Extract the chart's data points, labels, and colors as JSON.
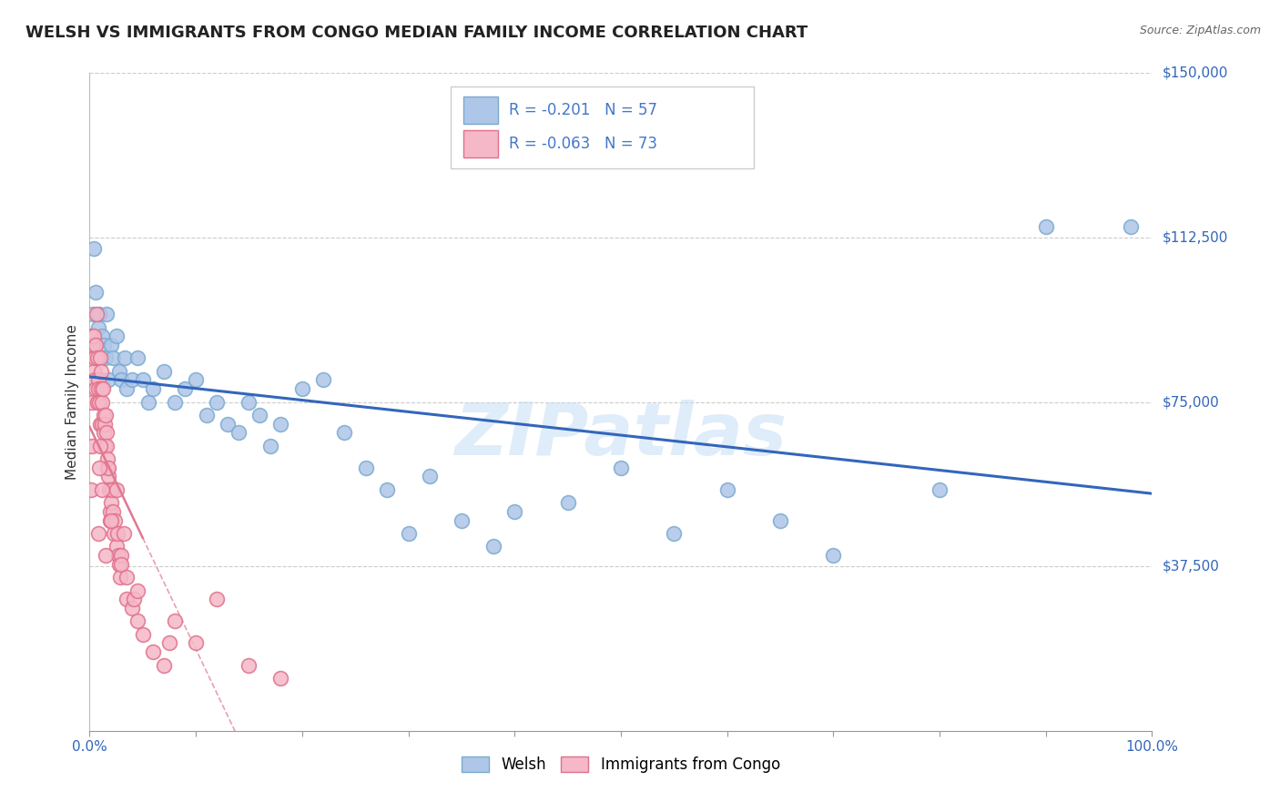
{
  "title": "WELSH VS IMMIGRANTS FROM CONGO MEDIAN FAMILY INCOME CORRELATION CHART",
  "source": "Source: ZipAtlas.com",
  "ylabel": "Median Family Income",
  "xlim": [
    0,
    100
  ],
  "ylim": [
    0,
    150000
  ],
  "yticks": [
    0,
    37500,
    75000,
    112500,
    150000
  ],
  "ytick_labels": [
    "",
    "$37,500",
    "$75,000",
    "$112,500",
    "$150,000"
  ],
  "welsh_R": -0.201,
  "welsh_N": 57,
  "congo_R": -0.063,
  "congo_N": 73,
  "welsh_color": "#aec6e8",
  "welsh_edge_color": "#7aaad0",
  "congo_color": "#f5b8c8",
  "congo_edge_color": "#e0708a",
  "welsh_line_color": "#3366bb",
  "congo_line_color": "#e07890",
  "congo_dash_color": "#e8a0b0",
  "background_color": "#ffffff",
  "grid_color": "#cccccc",
  "watermark": "ZIPatlas",
  "legend_text_color": "#4477cc",
  "title_fontsize": 13,
  "axis_label_fontsize": 11,
  "tick_fontsize": 11,
  "legend_fontsize": 12,
  "welsh_x": [
    0.3,
    0.4,
    0.5,
    0.6,
    0.7,
    0.8,
    0.9,
    1.0,
    1.1,
    1.2,
    1.3,
    1.5,
    1.6,
    1.8,
    2.0,
    2.2,
    2.5,
    2.8,
    3.0,
    3.3,
    3.5,
    4.0,
    4.5,
    5.0,
    5.5,
    6.0,
    7.0,
    8.0,
    9.0,
    10.0,
    11.0,
    12.0,
    13.0,
    14.0,
    15.0,
    16.0,
    17.0,
    18.0,
    20.0,
    22.0,
    24.0,
    26.0,
    28.0,
    30.0,
    32.0,
    35.0,
    38.0,
    40.0,
    45.0,
    50.0,
    55.0,
    60.0,
    65.0,
    70.0,
    80.0,
    90.0,
    98.0
  ],
  "welsh_y": [
    95000,
    110000,
    88000,
    100000,
    85000,
    92000,
    95000,
    85000,
    80000,
    90000,
    88000,
    85000,
    95000,
    80000,
    88000,
    85000,
    90000,
    82000,
    80000,
    85000,
    78000,
    80000,
    85000,
    80000,
    75000,
    78000,
    82000,
    75000,
    78000,
    80000,
    72000,
    75000,
    70000,
    68000,
    75000,
    72000,
    65000,
    70000,
    78000,
    80000,
    68000,
    60000,
    55000,
    45000,
    58000,
    48000,
    42000,
    50000,
    52000,
    60000,
    45000,
    55000,
    48000,
    40000,
    55000,
    115000,
    115000
  ],
  "congo_x": [
    0.1,
    0.15,
    0.2,
    0.25,
    0.3,
    0.35,
    0.4,
    0.45,
    0.5,
    0.55,
    0.6,
    0.65,
    0.7,
    0.75,
    0.8,
    0.85,
    0.9,
    0.95,
    1.0,
    1.05,
    1.1,
    1.15,
    1.2,
    1.25,
    1.3,
    1.35,
    1.4,
    1.45,
    1.5,
    1.55,
    1.6,
    1.65,
    1.7,
    1.75,
    1.8,
    1.85,
    1.9,
    1.95,
    2.0,
    2.1,
    2.2,
    2.3,
    2.4,
    2.5,
    2.6,
    2.7,
    2.8,
    2.9,
    3.0,
    3.2,
    3.5,
    4.0,
    4.5,
    5.0,
    6.0,
    7.0,
    8.0,
    10.0,
    12.0,
    15.0,
    18.0,
    3.0,
    7.5,
    4.2,
    1.0,
    2.5,
    0.8,
    1.5,
    3.5,
    2.0,
    4.5,
    1.2,
    0.9
  ],
  "congo_y": [
    90000,
    55000,
    65000,
    75000,
    88000,
    82000,
    90000,
    80000,
    85000,
    78000,
    88000,
    95000,
    85000,
    75000,
    80000,
    78000,
    75000,
    70000,
    85000,
    78000,
    82000,
    70000,
    75000,
    78000,
    72000,
    68000,
    65000,
    70000,
    72000,
    68000,
    65000,
    60000,
    62000,
    58000,
    60000,
    55000,
    50000,
    48000,
    52000,
    55000,
    50000,
    45000,
    48000,
    42000,
    45000,
    40000,
    38000,
    35000,
    40000,
    45000,
    30000,
    28000,
    25000,
    22000,
    18000,
    15000,
    25000,
    20000,
    30000,
    15000,
    12000,
    38000,
    20000,
    30000,
    65000,
    55000,
    45000,
    40000,
    35000,
    48000,
    32000,
    55000,
    60000
  ]
}
